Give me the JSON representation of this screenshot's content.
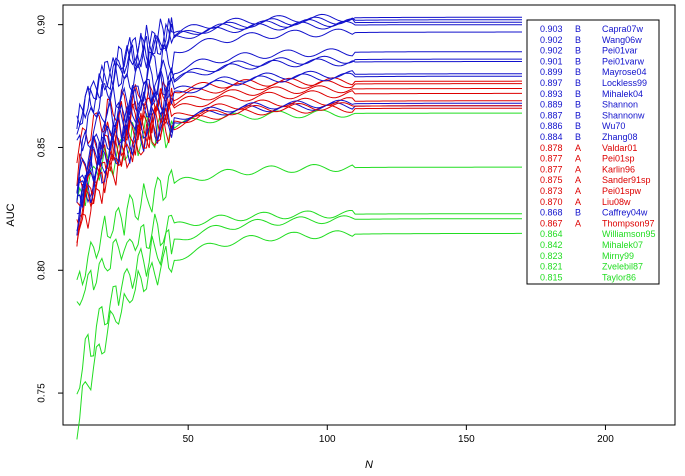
{
  "chart_data": {
    "type": "line",
    "title": "",
    "xlabel": "N",
    "ylabel": "AUC",
    "xlim": [
      5,
      225
    ],
    "ylim": [
      0.737,
      0.908
    ],
    "x_ticks": [
      50,
      100,
      150,
      200
    ],
    "x_tick_labels": [
      "50",
      "100",
      "150",
      "200"
    ],
    "y_ticks": [
      0.75,
      0.8,
      0.85,
      0.9
    ],
    "y_tick_labels": [
      "0.75",
      "0.80",
      "0.85",
      "0.90"
    ],
    "grid": false,
    "legend_position": "top-right",
    "colors": {
      "A": "#dd0000",
      "B": "#1111cc",
      "none": "#22dd22"
    },
    "series": [
      {
        "auc": "0.903",
        "group": "B",
        "label": "Capra07w",
        "start": 0.858,
        "final": 0.903
      },
      {
        "auc": "0.902",
        "group": "B",
        "label": "Wang06w",
        "start": 0.85,
        "final": 0.902
      },
      {
        "auc": "0.902",
        "group": "B",
        "label": "Pei01var",
        "start": 0.862,
        "final": 0.901
      },
      {
        "auc": "0.901",
        "group": "B",
        "label": "Pei01varw",
        "start": 0.86,
        "final": 0.9
      },
      {
        "auc": "0.899",
        "group": "B",
        "label": "Mayrose04",
        "start": 0.84,
        "final": 0.897
      },
      {
        "auc": "0.897",
        "group": "B",
        "label": "Lockless99",
        "start": 0.835,
        "final": 0.889
      },
      {
        "auc": "0.893",
        "group": "B",
        "label": "Mihalek04",
        "start": 0.83,
        "final": 0.886
      },
      {
        "auc": "0.889",
        "group": "B",
        "label": "Shannon",
        "start": 0.832,
        "final": 0.885
      },
      {
        "auc": "0.887",
        "group": "B",
        "label": "Shannonw",
        "start": 0.828,
        "final": 0.88
      },
      {
        "auc": "0.886",
        "group": "B",
        "label": "Wu70",
        "start": 0.826,
        "final": 0.879
      },
      {
        "auc": "0.884",
        "group": "B",
        "label": "Zhang08",
        "start": 0.824,
        "final": 0.868
      },
      {
        "auc": "0.878",
        "group": "A",
        "label": "Valdar01",
        "start": 0.852,
        "final": 0.877
      },
      {
        "auc": "0.877",
        "group": "A",
        "label": "Pei01sp",
        "start": 0.838,
        "final": 0.876
      },
      {
        "auc": "0.877",
        "group": "A",
        "label": "Karlin96",
        "start": 0.83,
        "final": 0.874
      },
      {
        "auc": "0.875",
        "group": "A",
        "label": "Sander91sp",
        "start": 0.825,
        "final": 0.872
      },
      {
        "auc": "0.873",
        "group": "A",
        "label": "Pei01spw",
        "start": 0.822,
        "final": 0.869
      },
      {
        "auc": "0.870",
        "group": "A",
        "label": "Liu08w",
        "start": 0.818,
        "final": 0.867
      },
      {
        "auc": "0.868",
        "group": "B",
        "label": "Caffrey04w",
        "start": 0.823,
        "final": 0.867
      },
      {
        "auc": "0.867",
        "group": "A",
        "label": "Thompson97",
        "start": 0.815,
        "final": 0.866
      },
      {
        "auc": "0.864",
        "group": "",
        "label": "Williamson95",
        "start": 0.828,
        "final": 0.864
      },
      {
        "auc": "0.842",
        "group": "",
        "label": "Mihalek07",
        "start": 0.793,
        "final": 0.842
      },
      {
        "auc": "0.823",
        "group": "",
        "label": "Mirny99",
        "start": 0.787,
        "final": 0.823
      },
      {
        "auc": "0.821",
        "group": "",
        "label": "Zvelebil87",
        "start": 0.755,
        "final": 0.821
      },
      {
        "auc": "0.815",
        "group": "",
        "label": "Taylor86",
        "start": 0.74,
        "final": 0.815
      }
    ],
    "x_range": [
      10,
      170
    ]
  }
}
